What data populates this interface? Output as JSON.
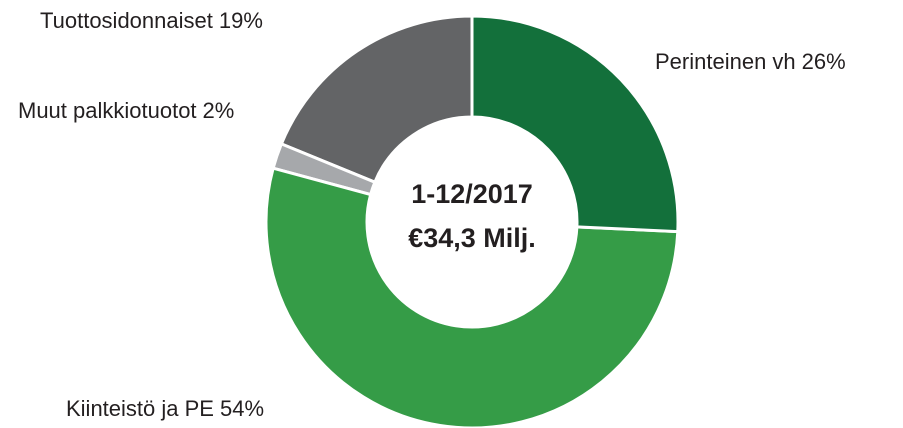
{
  "chart_data": {
    "type": "donut",
    "center_text": [
      "1-12/2017",
      "€34,3 Milj."
    ],
    "categories": [
      "Perinteinen vh",
      "Kiinteistö ja PE",
      "Muut palkkiotuotot",
      "Tuottosidonnaiset"
    ],
    "values": [
      26,
      54,
      2,
      19
    ],
    "value_labels": [
      "26%",
      "54%",
      "2%",
      "19%"
    ],
    "colors": [
      "#13703b",
      "#359c47",
      "#a6a8ab",
      "#636466"
    ]
  }
}
